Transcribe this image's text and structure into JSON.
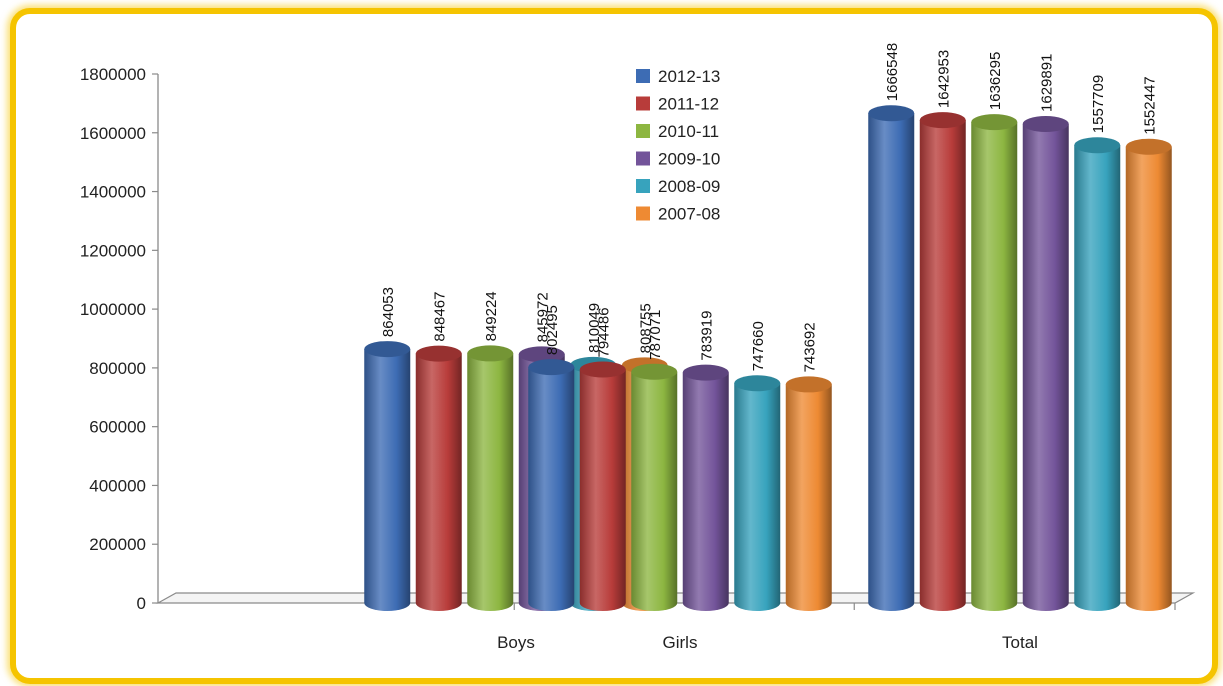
{
  "chart_data": {
    "type": "bar",
    "categories": [
      "Boys",
      "Girls",
      "Total"
    ],
    "series": [
      {
        "name": "2012-13",
        "color": "#3d6cb4",
        "values": [
          864053,
          802495,
          1666548
        ]
      },
      {
        "name": "2011-12",
        "color": "#b83c3a",
        "values": [
          848467,
          794486,
          1642953
        ]
      },
      {
        "name": "2010-11",
        "color": "#8db641",
        "values": [
          849224,
          787071,
          1636295
        ]
      },
      {
        "name": "2009-10",
        "color": "#73549a",
        "values": [
          845972,
          783919,
          1629891
        ]
      },
      {
        "name": "2008-09",
        "color": "#37a3bd",
        "values": [
          810049,
          747660,
          1557709
        ]
      },
      {
        "name": "2007-08",
        "color": "#ee8a33",
        "values": [
          808755,
          743692,
          1552447
        ]
      }
    ],
    "yticks": [
      0,
      200000,
      400000,
      600000,
      800000,
      1000000,
      1200000,
      1400000,
      1600000,
      1800000
    ],
    "ylim": [
      0,
      1800000
    ],
    "title": "",
    "xlabel": "",
    "ylabel": "",
    "legend_position": "top-center",
    "grid": false,
    "style": "3d-cylinder"
  }
}
